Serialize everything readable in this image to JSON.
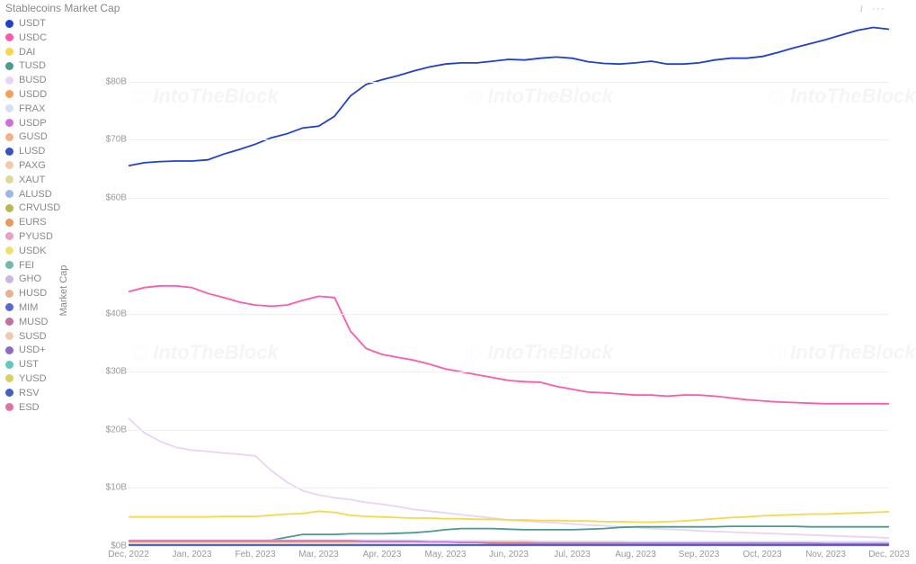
{
  "title": "Stablecoins Market Cap",
  "watermark_text": "IntoTheBlock",
  "chart": {
    "type": "line",
    "ylabel": "Market Cap",
    "background_color": "#ffffff",
    "grid_color": "#f0f0f0",
    "axis_text_color": "#999999",
    "line_width": 1.8,
    "ylim": [
      0,
      90
    ],
    "yticks": [
      0,
      10,
      20,
      30,
      40,
      60,
      70,
      80
    ],
    "ytick_labels": [
      "$0B",
      "$10B",
      "$20B",
      "$30B",
      "$40B",
      "$60B",
      "$70B",
      "$80B"
    ],
    "x_categories": [
      "Dec, 2022",
      "Jan, 2023",
      "Feb, 2023",
      "Mar, 2023",
      "Apr, 2023",
      "May, 2023",
      "Jun, 2023",
      "Jul, 2023",
      "Aug, 2023",
      "Sep, 2023",
      "Oct, 2023",
      "Nov, 2023",
      "Dec, 2023"
    ],
    "watermark_positions": [
      {
        "left_pct": 14,
        "top_pct": 14
      },
      {
        "left_pct": 56,
        "top_pct": 14
      },
      {
        "left_pct": 94,
        "top_pct": 14
      },
      {
        "left_pct": 14,
        "top_pct": 63
      },
      {
        "left_pct": 56,
        "top_pct": 63
      },
      {
        "left_pct": 94,
        "top_pct": 63
      }
    ]
  },
  "legend": [
    {
      "label": "USDT",
      "color": "#1f3fd6"
    },
    {
      "label": "USDC",
      "color": "#ff5aa9"
    },
    {
      "label": "DAI",
      "color": "#f5d94a"
    },
    {
      "label": "TUSD",
      "color": "#4a9b8e"
    },
    {
      "label": "BUSD",
      "color": "#e8d4f5"
    },
    {
      "label": "USDD",
      "color": "#f5a05a"
    },
    {
      "label": "FRAX",
      "color": "#d4e0f5"
    },
    {
      "label": "USDP",
      "color": "#d070d6"
    },
    {
      "label": "GUSD",
      "color": "#f5b088"
    },
    {
      "label": "LUSD",
      "color": "#3a50c8"
    },
    {
      "label": "PAXG",
      "color": "#f5c8a8"
    },
    {
      "label": "XAUT",
      "color": "#e0d898"
    },
    {
      "label": "ALUSD",
      "color": "#9ab8e8"
    },
    {
      "label": "CRVUSD",
      "color": "#b8b850"
    },
    {
      "label": "EURS",
      "color": "#e89858"
    },
    {
      "label": "PYUSD",
      "color": "#e8a0c8"
    },
    {
      "label": "USDK",
      "color": "#f0e070"
    },
    {
      "label": "FEI",
      "color": "#70b8a8"
    },
    {
      "label": "GHO",
      "color": "#c8b8e0"
    },
    {
      "label": "HUSD",
      "color": "#e8b090"
    },
    {
      "label": "MIM",
      "color": "#5868d0"
    },
    {
      "label": "MUSD",
      "color": "#c070a0"
    },
    {
      "label": "SUSD",
      "color": "#f0c8b0"
    },
    {
      "label": "USD+",
      "color": "#8a6bc8"
    },
    {
      "label": "UST",
      "color": "#60c8c0"
    },
    {
      "label": "YUSD",
      "color": "#d8d060"
    },
    {
      "label": "RSV",
      "color": "#4060c8"
    },
    {
      "label": "ESD",
      "color": "#e070a8"
    }
  ],
  "series": [
    {
      "name": "USDT",
      "color": "#1f3fd6",
      "values": [
        65.5,
        66.0,
        66.2,
        66.3,
        66.3,
        66.5,
        67.5,
        68.3,
        69.2,
        70.3,
        71.0,
        72.0,
        72.3,
        74.0,
        77.5,
        79.5,
        80.3,
        81.0,
        81.8,
        82.5,
        83.0,
        83.2,
        83.2,
        83.5,
        83.8,
        83.7,
        84.0,
        84.2,
        84.0,
        83.4,
        83.1,
        83.0,
        83.2,
        83.5,
        83.0,
        83.0,
        83.2,
        83.7,
        84.0,
        84.0,
        84.3,
        85.0,
        85.8,
        86.5,
        87.2,
        88.0,
        88.8,
        89.3,
        89.0
      ]
    },
    {
      "name": "USDC",
      "color": "#ff5aa9",
      "values": [
        43.8,
        44.5,
        44.8,
        44.8,
        44.5,
        43.5,
        42.8,
        42.0,
        41.5,
        41.3,
        41.5,
        42.3,
        43.0,
        42.8,
        37.0,
        34.0,
        33.0,
        32.5,
        32.0,
        31.3,
        30.5,
        30.0,
        29.5,
        29.0,
        28.5,
        28.3,
        28.2,
        27.5,
        27.0,
        26.5,
        26.4,
        26.2,
        26.0,
        26.0,
        25.8,
        26.0,
        26.0,
        25.8,
        25.5,
        25.2,
        25.0,
        24.8,
        24.7,
        24.6,
        24.5,
        24.5,
        24.5,
        24.5,
        24.5
      ]
    },
    {
      "name": "BUSD",
      "color": "#e8d4f5",
      "values": [
        22.0,
        19.5,
        18.0,
        17.0,
        16.5,
        16.3,
        16.0,
        15.8,
        15.5,
        13.0,
        11.0,
        9.5,
        8.8,
        8.3,
        8.0,
        7.5,
        7.2,
        6.8,
        6.3,
        6.0,
        5.7,
        5.4,
        5.1,
        4.8,
        4.5,
        4.3,
        4.1,
        4.0,
        3.8,
        3.6,
        3.5,
        3.3,
        3.2,
        3.0,
        2.9,
        2.8,
        2.6,
        2.5,
        2.4,
        2.3,
        2.2,
        2.1,
        2.0,
        1.9,
        1.8,
        1.7,
        1.6,
        1.5,
        1.4
      ]
    },
    {
      "name": "DAI",
      "color": "#f5d94a",
      "values": [
        5.0,
        5.0,
        5.0,
        5.0,
        5.0,
        5.0,
        5.1,
        5.1,
        5.1,
        5.3,
        5.5,
        5.6,
        6.0,
        5.8,
        5.3,
        5.1,
        5.0,
        4.9,
        4.8,
        4.8,
        4.7,
        4.7,
        4.6,
        4.6,
        4.5,
        4.5,
        4.4,
        4.4,
        4.3,
        4.3,
        4.2,
        4.2,
        4.1,
        4.1,
        4.2,
        4.3,
        4.5,
        4.7,
        4.9,
        5.0,
        5.2,
        5.3,
        5.4,
        5.5,
        5.5,
        5.6,
        5.7,
        5.8,
        5.9
      ]
    },
    {
      "name": "TUSD",
      "color": "#4a9b8e",
      "values": [
        0.8,
        0.8,
        0.8,
        0.8,
        0.8,
        0.9,
        0.9,
        0.9,
        0.9,
        1.0,
        1.5,
        2.0,
        2.0,
        2.0,
        2.1,
        2.1,
        2.1,
        2.2,
        2.3,
        2.5,
        2.8,
        3.0,
        3.0,
        3.0,
        2.9,
        2.8,
        2.8,
        2.8,
        2.8,
        2.9,
        3.0,
        3.2,
        3.3,
        3.3,
        3.3,
        3.3,
        3.3,
        3.3,
        3.4,
        3.4,
        3.4,
        3.4,
        3.4,
        3.3,
        3.3,
        3.3,
        3.3,
        3.3,
        3.3
      ]
    },
    {
      "name": "USDD",
      "color": "#f5a05a",
      "values": [
        0.7,
        0.7,
        0.7,
        0.7,
        0.7,
        0.7,
        0.7,
        0.7,
        0.7,
        0.7,
        0.7,
        0.7,
        0.7,
        0.7,
        0.7,
        0.7,
        0.7,
        0.7,
        0.7,
        0.7,
        0.7,
        0.7,
        0.7,
        0.7,
        0.7,
        0.7,
        0.7,
        0.7,
        0.7,
        0.7,
        0.7,
        0.7,
        0.7,
        0.7,
        0.7,
        0.7,
        0.7,
        0.7,
        0.7,
        0.7,
        0.7,
        0.7,
        0.7,
        0.7,
        0.7,
        0.7,
        0.7,
        0.7,
        0.7
      ]
    },
    {
      "name": "FRAX",
      "color": "#d4e0f5",
      "values": [
        1.0,
        1.0,
        1.0,
        1.0,
        1.0,
        1.0,
        1.0,
        1.0,
        1.0,
        1.0,
        1.0,
        1.0,
        1.0,
        1.0,
        1.0,
        1.0,
        1.0,
        1.0,
        1.0,
        0.9,
        0.9,
        0.9,
        0.9,
        0.9,
        0.9,
        0.9,
        0.8,
        0.8,
        0.8,
        0.8,
        0.8,
        0.8,
        0.7,
        0.7,
        0.7,
        0.7,
        0.7,
        0.7,
        0.7,
        0.7,
        0.7,
        0.7,
        0.7,
        0.7,
        0.7,
        0.7,
        0.7,
        0.7,
        0.7
      ]
    },
    {
      "name": "USDP",
      "color": "#d070d6",
      "values": [
        0.9,
        0.9,
        0.9,
        0.9,
        0.9,
        0.9,
        0.9,
        0.9,
        0.9,
        0.9,
        0.9,
        0.9,
        0.9,
        0.9,
        0.9,
        0.8,
        0.8,
        0.8,
        0.8,
        0.7,
        0.7,
        0.6,
        0.6,
        0.5,
        0.5,
        0.5,
        0.5,
        0.5,
        0.5,
        0.5,
        0.5,
        0.5,
        0.5,
        0.5,
        0.5,
        0.5,
        0.5,
        0.5,
        0.5,
        0.5,
        0.5,
        0.5,
        0.5,
        0.5,
        0.4,
        0.4,
        0.4,
        0.4,
        0.4
      ]
    },
    {
      "name": "LUSD",
      "color": "#3a50c8",
      "values": [
        0.2,
        0.2,
        0.2,
        0.2,
        0.2,
        0.2,
        0.2,
        0.2,
        0.2,
        0.2,
        0.2,
        0.2,
        0.2,
        0.2,
        0.2,
        0.2,
        0.2,
        0.2,
        0.2,
        0.2,
        0.2,
        0.2,
        0.2,
        0.2,
        0.2,
        0.2,
        0.2,
        0.2,
        0.2,
        0.2,
        0.2,
        0.2,
        0.2,
        0.2,
        0.2,
        0.2,
        0.2,
        0.2,
        0.2,
        0.2,
        0.2,
        0.2,
        0.2,
        0.2,
        0.2,
        0.2,
        0.2,
        0.2,
        0.2
      ]
    },
    {
      "name": "MIM",
      "color": "#5868d0",
      "values": [
        0.1,
        0.1,
        0.1,
        0.1,
        0.1,
        0.1,
        0.1,
        0.1,
        0.1,
        0.1,
        0.1,
        0.1,
        0.1,
        0.1,
        0.1,
        0.1,
        0.1,
        0.1,
        0.1,
        0.1,
        0.1,
        0.1,
        0.1,
        0.1,
        0.1,
        0.1,
        0.1,
        0.1,
        0.1,
        0.1,
        0.1,
        0.1,
        0.1,
        0.1,
        0.1,
        0.1,
        0.1,
        0.1,
        0.1,
        0.1,
        0.1,
        0.1,
        0.1,
        0.1,
        0.1,
        0.1,
        0.1,
        0.1,
        0.1
      ]
    }
  ]
}
